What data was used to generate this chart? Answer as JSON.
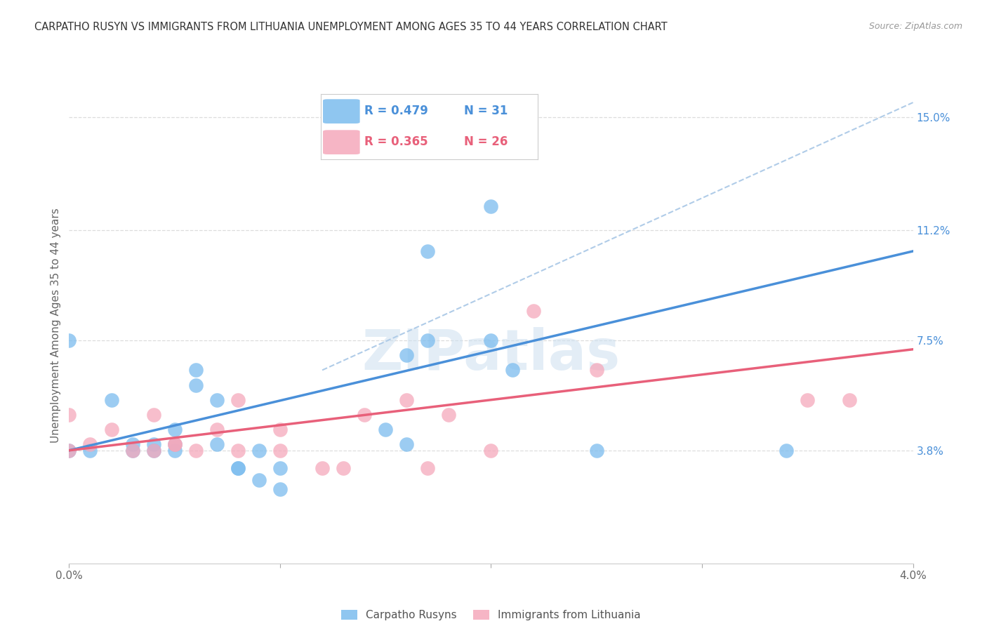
{
  "title": "CARPATHO RUSYN VS IMMIGRANTS FROM LITHUANIA UNEMPLOYMENT AMONG AGES 35 TO 44 YEARS CORRELATION CHART",
  "source": "Source: ZipAtlas.com",
  "ylabel": "Unemployment Among Ages 35 to 44 years",
  "watermark": "ZIPatlas",
  "x_min": 0.0,
  "x_max": 0.04,
  "y_min": 0.0,
  "y_max": 0.16,
  "x_ticks": [
    0.0,
    0.01,
    0.02,
    0.03,
    0.04
  ],
  "y_tick_labels_right": [
    "15.0%",
    "11.2%",
    "7.5%",
    "3.8%"
  ],
  "y_ticks_right": [
    0.15,
    0.112,
    0.075,
    0.038
  ],
  "legend_R1": "R = 0.479",
  "legend_N1": "N = 31",
  "legend_R2": "R = 0.365",
  "legend_N2": "N = 26",
  "blue_color": "#7bbcee",
  "pink_color": "#f5a8bb",
  "blue_line_color": "#4a90d9",
  "pink_line_color": "#e8607a",
  "dashed_line_color": "#b0cce8",
  "grid_color": "#dddddd",
  "background_color": "#ffffff",
  "title_color": "#333333",
  "carpatho_x": [
    0.0,
    0.001,
    0.002,
    0.003,
    0.003,
    0.004,
    0.004,
    0.005,
    0.005,
    0.005,
    0.006,
    0.006,
    0.007,
    0.007,
    0.008,
    0.008,
    0.009,
    0.009,
    0.01,
    0.01,
    0.015,
    0.016,
    0.016,
    0.017,
    0.017,
    0.02,
    0.02,
    0.021,
    0.025,
    0.034,
    0.0
  ],
  "carpatho_y": [
    0.038,
    0.038,
    0.055,
    0.038,
    0.04,
    0.04,
    0.038,
    0.045,
    0.04,
    0.038,
    0.06,
    0.065,
    0.04,
    0.055,
    0.032,
    0.032,
    0.038,
    0.028,
    0.025,
    0.032,
    0.045,
    0.04,
    0.07,
    0.105,
    0.075,
    0.12,
    0.075,
    0.065,
    0.038,
    0.038,
    0.075
  ],
  "lithuania_x": [
    0.0,
    0.001,
    0.002,
    0.003,
    0.004,
    0.004,
    0.005,
    0.005,
    0.006,
    0.007,
    0.008,
    0.008,
    0.01,
    0.01,
    0.012,
    0.013,
    0.014,
    0.016,
    0.017,
    0.018,
    0.02,
    0.022,
    0.025,
    0.035,
    0.037,
    0.0
  ],
  "lithuania_y": [
    0.038,
    0.04,
    0.045,
    0.038,
    0.038,
    0.05,
    0.04,
    0.04,
    0.038,
    0.045,
    0.038,
    0.055,
    0.038,
    0.045,
    0.032,
    0.032,
    0.05,
    0.055,
    0.032,
    0.05,
    0.038,
    0.085,
    0.065,
    0.055,
    0.055,
    0.05
  ],
  "blue_trend_x": [
    0.0,
    0.04
  ],
  "blue_trend_y": [
    0.038,
    0.105
  ],
  "pink_trend_x": [
    0.0,
    0.04
  ],
  "pink_trend_y": [
    0.038,
    0.072
  ],
  "dashed_trend_x": [
    0.012,
    0.04
  ],
  "dashed_trend_y": [
    0.065,
    0.155
  ]
}
